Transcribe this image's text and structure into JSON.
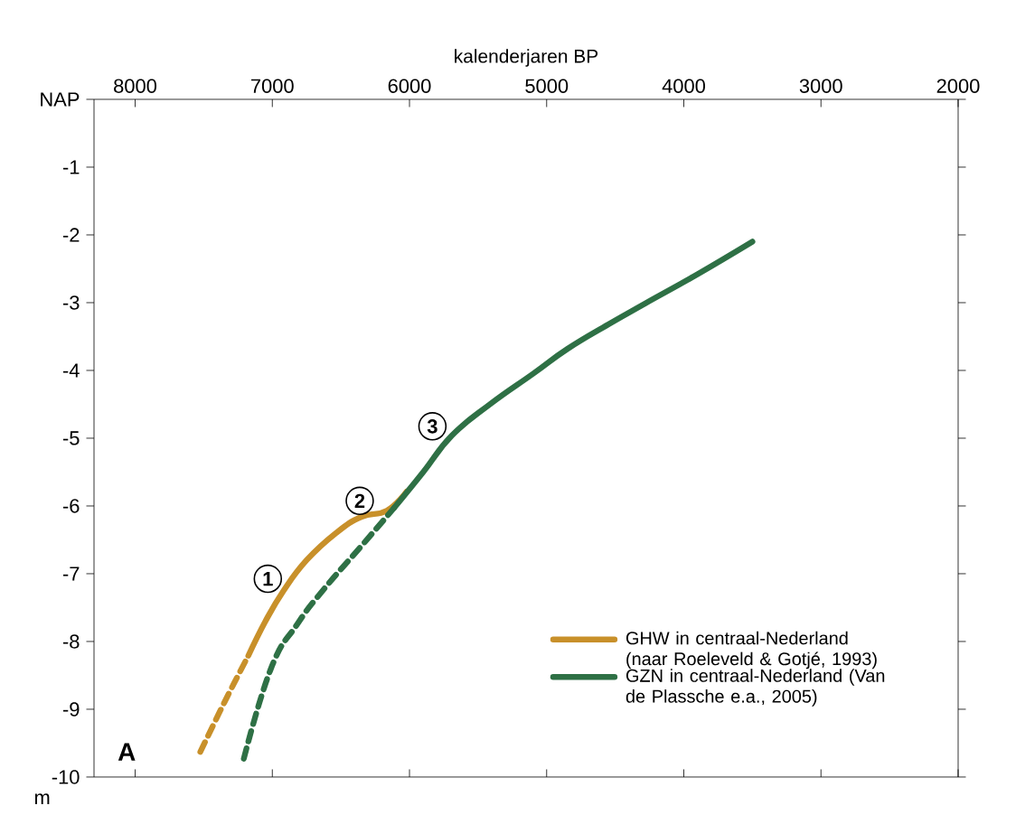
{
  "chart_data": {
    "type": "line",
    "xlabel": "kalenderjaren BP",
    "ylabel": "m",
    "xlim": [
      8300,
      2000
    ],
    "xticks": [
      8000,
      7000,
      6000,
      5000,
      4000,
      3000,
      2000
    ],
    "ylim": [
      -10,
      0
    ],
    "yticks": [
      {
        "value": 0,
        "label": "NAP"
      },
      -1,
      -2,
      -3,
      -4,
      -5,
      -6,
      -7,
      -8,
      -9,
      -10
    ],
    "series": [
      {
        "name": "GHW in centraal-Nederland (naar Roeleveld & Gotjé, 1993)",
        "color": "#c8902a",
        "line_style": "solid",
        "x": [
          7175,
          7050,
          6918,
          6750,
          6536,
          6350,
          6166,
          6021
        ],
        "values": [
          -8.21,
          -7.7,
          -7.25,
          -6.8,
          -6.4,
          -6.16,
          -6.07,
          -5.79
        ]
      },
      {
        "color": "#c8902a",
        "line_style": "dashed",
        "x": [
          7525,
          7350,
          7175
        ],
        "values": [
          -9.63,
          -8.9,
          -8.21
        ]
      },
      {
        "name": "GZN in centraal-Nederland (Van de Plassche e.a., 2005)",
        "color": "#2e7045",
        "line_style": "solid",
        "x": [
          6113,
          5900,
          5691,
          5414,
          5100,
          4847,
          4550,
          4280,
          3900,
          3500
        ],
        "values": [
          -6.03,
          -5.5,
          -4.96,
          -4.5,
          -4.05,
          -3.68,
          -3.32,
          -3.01,
          -2.58,
          -2.1
        ]
      },
      {
        "color": "#2e7045",
        "line_style": "dashed",
        "x": [
          7208,
          7010,
          6820,
          6633,
          6350,
          6113
        ],
        "values": [
          -9.73,
          -8.4,
          -7.75,
          -7.25,
          -6.59,
          -6.03
        ]
      }
    ],
    "legend": "bottom right",
    "annotations": [
      {
        "text": "1",
        "x": 6920,
        "y": -7.25
      },
      {
        "text": "2",
        "x": 6250,
        "y": -6.1
      },
      {
        "text": "3",
        "x": 5720,
        "y": -5.0
      },
      "A"
    ]
  }
}
